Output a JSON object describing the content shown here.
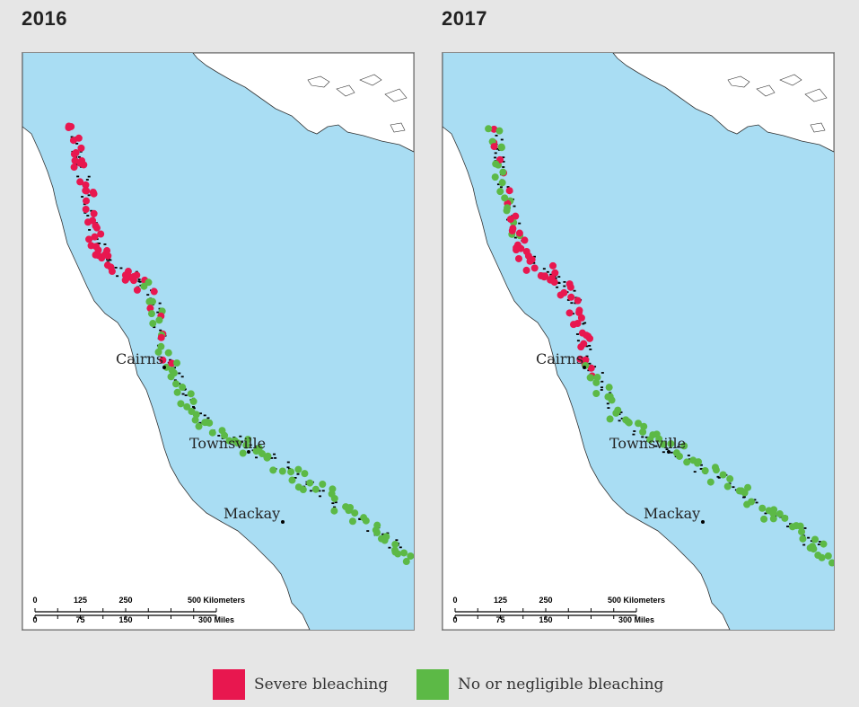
{
  "colors": {
    "ocean": "#a9ddf3",
    "land": "#ffffff",
    "severe": "#e8174f",
    "none": "#5cb946",
    "reef": "#000000"
  },
  "legend": {
    "severe_label": "Severe bleaching",
    "none_label": "No or negligible bleaching"
  },
  "panels": [
    {
      "year": "2016",
      "cities": [
        "Cairns",
        "Townsville",
        "Mackay"
      ],
      "scale": {
        "km_ticks": [
          "0",
          "125",
          "250",
          "500 Kilometers"
        ],
        "mi_ticks": [
          "0",
          "75",
          "150",
          "300 Miles"
        ]
      },
      "segments": [
        {
          "status": "severe",
          "from": "northern tip",
          "to": "south of Cairns"
        },
        {
          "status": "mixed",
          "from": "south of Cairns",
          "to": "Townsville"
        },
        {
          "status": "none",
          "from": "Townsville",
          "to": "south of Mackay"
        }
      ]
    },
    {
      "year": "2017",
      "cities": [
        "Cairns",
        "Townsville",
        "Mackay"
      ],
      "scale": {
        "km_ticks": [
          "0",
          "125",
          "250",
          "500 Kilometers"
        ],
        "mi_ticks": [
          "0",
          "75",
          "150",
          "300 Miles"
        ]
      },
      "segments": [
        {
          "status": "mixed",
          "from": "northern tip",
          "to": "north of Cairns"
        },
        {
          "status": "severe",
          "from": "north of Cairns",
          "to": "Townsville"
        },
        {
          "status": "none",
          "from": "Townsville",
          "to": "south of Mackay"
        }
      ]
    }
  ]
}
